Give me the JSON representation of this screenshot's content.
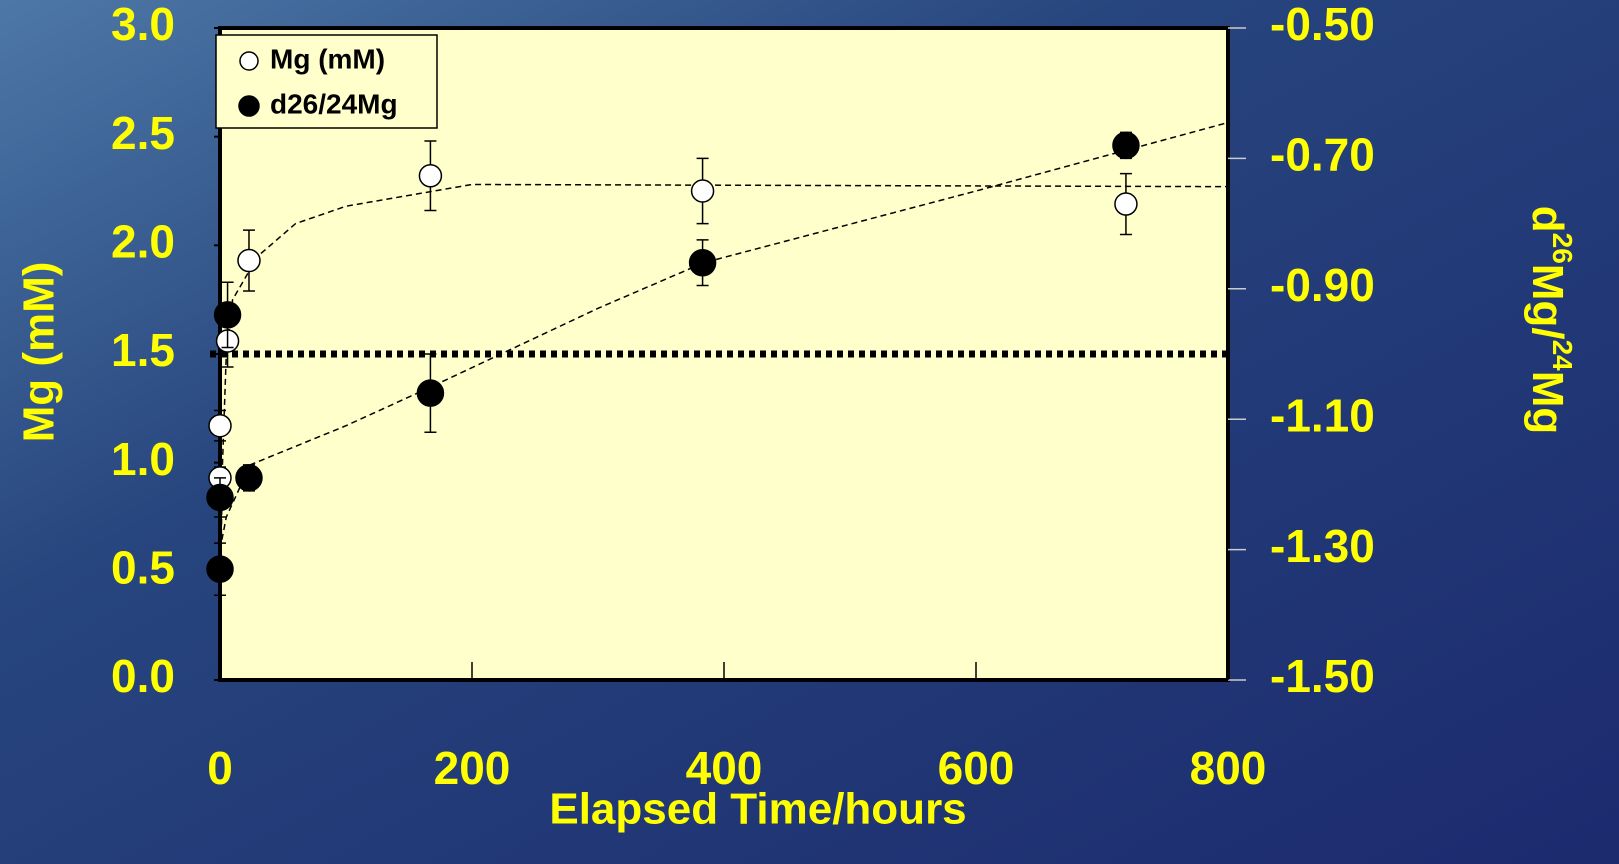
{
  "chart_data": {
    "type": "scatter",
    "xlabel": "Elapsed Time/hours",
    "ylabel": "Mg (mM)",
    "y2label": [
      {
        "text": "d",
        "sup": false
      },
      {
        "text": "26",
        "sup": true
      },
      {
        "text": "Mg/",
        "sup": false
      },
      {
        "text": "24",
        "sup": true
      },
      {
        "text": "Mg",
        "sup": false
      }
    ],
    "xlim": [
      0,
      800
    ],
    "xticks": [
      0,
      200,
      400,
      600,
      800
    ],
    "ylim": [
      0,
      3
    ],
    "yticks": [
      {
        "value": 0,
        "label": "0.0"
      },
      {
        "value": 0.5,
        "label": "0.5"
      },
      {
        "value": 1,
        "label": "1.0"
      },
      {
        "value": 1.5,
        "label": "1.5"
      },
      {
        "value": 2,
        "label": "2.0"
      },
      {
        "value": 2.5,
        "label": "2.5"
      },
      {
        "value": 3,
        "label": "3.0"
      }
    ],
    "y2lim": [
      -1.5,
      -0.5
    ],
    "y2ticks": [
      {
        "value": -1.5,
        "label": "-1.50"
      },
      {
        "value": -1.3,
        "label": "-1.30"
      },
      {
        "value": -1.1,
        "label": "-1.10"
      },
      {
        "value": -0.9,
        "label": "-0.90"
      },
      {
        "value": -0.7,
        "label": "-0.70"
      },
      {
        "value": -0.5,
        "label": "-0.50"
      }
    ],
    "legend": "upper left",
    "series": [
      {
        "name": "Mg (mM)",
        "color": "#ffffff",
        "axis": "y",
        "x": [
          0,
          0,
          6,
          23,
          167,
          383,
          719
        ],
        "values": [
          0.93,
          1.17,
          1.56,
          1.93,
          2.32,
          2.25,
          2.19
        ],
        "errors": [
          0.05,
          0.07,
          0.12,
          0.14,
          0.16,
          0.15,
          0.14
        ]
      },
      {
        "name": "d26/24Mg",
        "color": "#000000",
        "axis": "y2",
        "x": [
          0,
          0,
          6,
          23,
          167,
          383,
          719
        ],
        "values": [
          -1.33,
          -1.22,
          -0.94,
          -1.19,
          -1.06,
          -0.86,
          -0.68
        ],
        "errors": [
          0.04,
          0.03,
          0.05,
          0.02,
          0.06,
          0.035,
          0.02
        ]
      }
    ],
    "trendlines": [
      {
        "axis": "y",
        "x": [
          0,
          2,
          5,
          10,
          30,
          60,
          100,
          200,
          800
        ],
        "values": [
          0.3,
          1.0,
          1.5,
          1.75,
          1.95,
          2.1,
          2.18,
          2.28,
          2.27
        ]
      },
      {
        "axis": "y2",
        "x": [
          0,
          5,
          24,
          100,
          168,
          300,
          384,
          600,
          800
        ],
        "values": [
          -1.3,
          -1.25,
          -1.17,
          -1.11,
          -1.05,
          -0.93,
          -0.86,
          -0.75,
          -0.645
        ]
      }
    ],
    "reference_line": {
      "axis": "y",
      "value": 1.5
    }
  }
}
